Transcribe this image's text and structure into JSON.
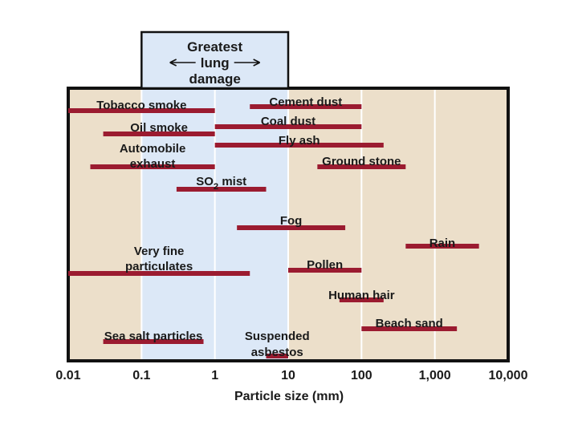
{
  "chart_data": {
    "type": "range-bar",
    "title": "",
    "xlabel": "Particle size (mm)",
    "ylabel": "",
    "xscale": "log",
    "xlim": [
      0.01,
      10000
    ],
    "x_ticks": [
      {
        "value": 0.01,
        "label": "0.01"
      },
      {
        "value": 0.1,
        "label": "0.1"
      },
      {
        "value": 1,
        "label": "1"
      },
      {
        "value": 10,
        "label": "10"
      },
      {
        "value": 100,
        "label": "100"
      },
      {
        "value": 1000,
        "label": "1,000"
      },
      {
        "value": 10000,
        "label": "10,000"
      }
    ],
    "grid": true,
    "highlight": {
      "range": [
        0.1,
        10
      ],
      "label_lines": [
        "Greatest",
        "lung",
        "damage"
      ]
    },
    "colors": {
      "bar": "#9b1b30",
      "background": "#ecdfca",
      "highlight": "#dce8f7",
      "grid": "#ffffff"
    },
    "items": [
      {
        "name": "Tobacco smoke",
        "label_lines": [
          "Tobacco smoke"
        ],
        "start": 0.01,
        "end": 1
      },
      {
        "name": "Cement dust",
        "label_lines": [
          "Cement dust"
        ],
        "start": 3,
        "end": 100
      },
      {
        "name": "Oil smoke",
        "label_lines": [
          "Oil smoke"
        ],
        "start": 0.03,
        "end": 1
      },
      {
        "name": "Coal dust",
        "label_lines": [
          "Coal dust"
        ],
        "start": 1,
        "end": 100
      },
      {
        "name": "Fly ash",
        "label_lines": [
          "Fly ash"
        ],
        "start": 1,
        "end": 200
      },
      {
        "name": "Automobile exhaust",
        "label_lines": [
          "Automobile",
          "exhaust"
        ],
        "start": 0.02,
        "end": 1
      },
      {
        "name": "Ground stone",
        "label_lines": [
          "Ground stone"
        ],
        "start": 25,
        "end": 400
      },
      {
        "name": "SO2 mist",
        "label_lines": [
          "SO2 mist"
        ],
        "start": 0.3,
        "end": 5
      },
      {
        "name": "Fog",
        "label_lines": [
          "Fog"
        ],
        "start": 2,
        "end": 60
      },
      {
        "name": "Rain",
        "label_lines": [
          "Rain"
        ],
        "start": 400,
        "end": 4000
      },
      {
        "name": "Very fine particulates",
        "label_lines": [
          "Very fine",
          "particulates"
        ],
        "start": 0.01,
        "end": 3
      },
      {
        "name": "Pollen",
        "label_lines": [
          "Pollen"
        ],
        "start": 10,
        "end": 100
      },
      {
        "name": "Human hair",
        "label_lines": [
          "Human hair"
        ],
        "start": 50,
        "end": 200
      },
      {
        "name": "Beach sand",
        "label_lines": [
          "Beach sand"
        ],
        "start": 100,
        "end": 2000
      },
      {
        "name": "Sea salt particles",
        "label_lines": [
          "Sea salt particles"
        ],
        "start": 0.03,
        "end": 0.7
      },
      {
        "name": "Suspended asbestos",
        "label_lines": [
          "Suspended",
          "asbestos"
        ],
        "start": 5,
        "end": 10
      }
    ]
  }
}
